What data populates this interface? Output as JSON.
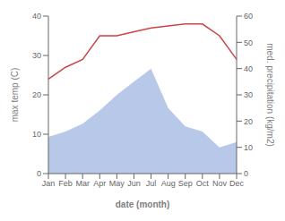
{
  "chart_data": {
    "type": "line",
    "categories": [
      "Jan",
      "Feb",
      "Mar",
      "Apr",
      "May",
      "Jun",
      "Jul",
      "Aug",
      "Sep",
      "Oct",
      "Nov",
      "Dec"
    ],
    "series": [
      {
        "type": "line",
        "color": "#cc4444",
        "values": [
          24,
          27,
          29,
          35,
          35,
          36,
          37,
          37.5,
          38,
          38,
          35,
          29
        ]
      },
      {
        "type": "area",
        "color": "#b8c8e8",
        "axis": "y2",
        "values": [
          14,
          16,
          19,
          24,
          30,
          35,
          40,
          25,
          18,
          16,
          10,
          12
        ]
      }
    ],
    "xlabel": "date (month)",
    "ylabel": "max temp (C)",
    "y2label": "med. precipitation (kg/m2)",
    "ylim": [
      0,
      40
    ],
    "yticks": [
      0,
      10,
      20,
      30,
      40
    ],
    "y2lim": [
      0,
      60
    ],
    "y2ticks": [
      0,
      10,
      20,
      30,
      40,
      50,
      60
    ],
    "grid": false
  }
}
